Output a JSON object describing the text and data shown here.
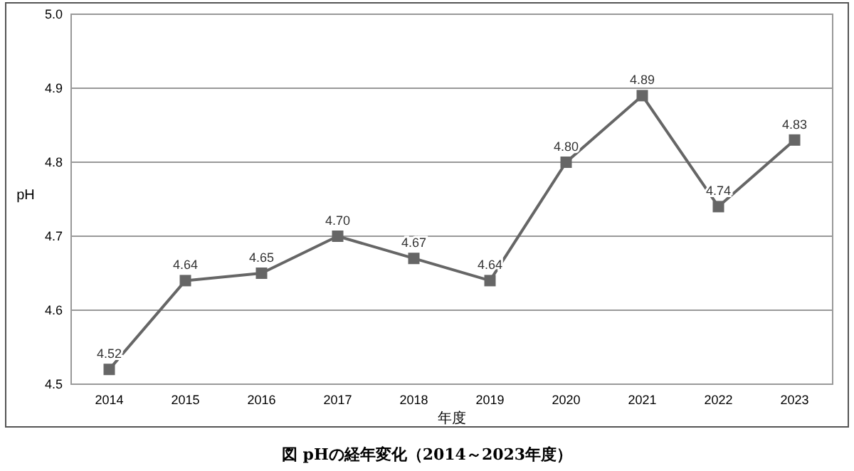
{
  "chart_data": {
    "type": "line",
    "title": "図 pHの経年変化（2014～2023年度）",
    "xlabel": "年度",
    "ylabel": "pH",
    "categories": [
      "2014",
      "2015",
      "2016",
      "2017",
      "2018",
      "2019",
      "2020",
      "2021",
      "2022",
      "2023"
    ],
    "series": [
      {
        "color": "#666666",
        "values": [
          4.52,
          4.64,
          4.65,
          4.7,
          4.67,
          4.64,
          4.8,
          4.89,
          4.74,
          4.83
        ],
        "value_labels": [
          "4.52",
          "4.64",
          "4.65",
          "4.70",
          "4.67",
          "4.64",
          "4.80",
          "4.89",
          "4.74",
          "4.83"
        ]
      }
    ],
    "ylim": [
      4.5,
      5.0
    ],
    "yticks": [
      {
        "value": 4.5,
        "label": "4.5"
      },
      {
        "value": 4.6,
        "label": "4.6"
      },
      {
        "value": 4.7,
        "label": "4.7"
      },
      {
        "value": 4.8,
        "label": "4.8"
      },
      {
        "value": 4.9,
        "label": "4.9"
      },
      {
        "value": 5.0,
        "label": "5.0"
      }
    ],
    "grid": "y",
    "marker": "square",
    "line_style": "solid"
  }
}
